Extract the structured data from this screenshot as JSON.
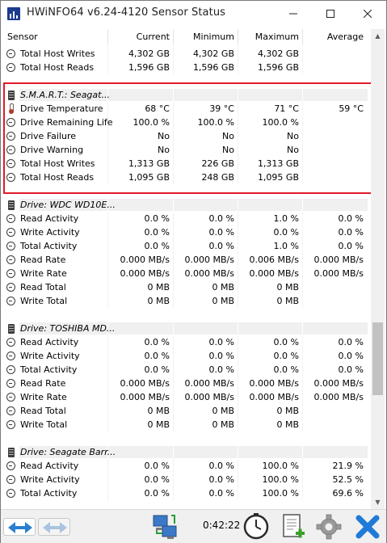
{
  "window": {
    "title": "HWiNFO64 v6.24-4120 Sensor Status",
    "highlight_color": "#e01a2a"
  },
  "columns": {
    "sensor": "Sensor",
    "current": "Current",
    "minimum": "Minimum",
    "maximum": "Maximum",
    "average": "Average"
  },
  "rows": [
    {
      "type": "sensor",
      "icon": "clock",
      "label": "Total Host Writes",
      "current": "4,302 GB",
      "minimum": "4,302 GB",
      "maximum": "4,302 GB",
      "average": ""
    },
    {
      "type": "sensor",
      "icon": "clock",
      "label": "Total Host Reads",
      "current": "1,596 GB",
      "minimum": "1,596 GB",
      "maximum": "1,596 GB",
      "average": ""
    },
    {
      "type": "spacer"
    },
    {
      "type": "group",
      "icon": "drive",
      "label": "S.M.A.R.T.: Seagat..."
    },
    {
      "type": "sensor",
      "icon": "thermometer",
      "label": "Drive Temperature",
      "current": "68 °C",
      "minimum": "39 °C",
      "maximum": "71 °C",
      "average": "59 °C"
    },
    {
      "type": "sensor",
      "icon": "clock",
      "label": "Drive Remaining Life",
      "current": "100.0 %",
      "minimum": "100.0 %",
      "maximum": "100.0 %",
      "average": ""
    },
    {
      "type": "sensor",
      "icon": "clock",
      "label": "Drive Failure",
      "current": "No",
      "minimum": "No",
      "maximum": "No",
      "average": ""
    },
    {
      "type": "sensor",
      "icon": "clock",
      "label": "Drive Warning",
      "current": "No",
      "minimum": "No",
      "maximum": "No",
      "average": ""
    },
    {
      "type": "sensor",
      "icon": "clock",
      "label": "Total Host Writes",
      "current": "1,313 GB",
      "minimum": "226 GB",
      "maximum": "1,313 GB",
      "average": ""
    },
    {
      "type": "sensor",
      "icon": "clock",
      "label": "Total Host Reads",
      "current": "1,095 GB",
      "minimum": "248 GB",
      "maximum": "1,095 GB",
      "average": ""
    },
    {
      "type": "spacer"
    },
    {
      "type": "group",
      "icon": "drive",
      "label": "Drive: WDC WD10E..."
    },
    {
      "type": "sensor",
      "icon": "clock",
      "label": "Read Activity",
      "current": "0.0 %",
      "minimum": "0.0 %",
      "maximum": "1.0 %",
      "average": "0.0 %"
    },
    {
      "type": "sensor",
      "icon": "clock",
      "label": "Write Activity",
      "current": "0.0 %",
      "minimum": "0.0 %",
      "maximum": "0.0 %",
      "average": "0.0 %"
    },
    {
      "type": "sensor",
      "icon": "clock",
      "label": "Total Activity",
      "current": "0.0 %",
      "minimum": "0.0 %",
      "maximum": "1.0 %",
      "average": "0.0 %"
    },
    {
      "type": "sensor",
      "icon": "clock",
      "label": "Read Rate",
      "current": "0.000 MB/s",
      "minimum": "0.000 MB/s",
      "maximum": "0.006 MB/s",
      "average": "0.000 MB/s"
    },
    {
      "type": "sensor",
      "icon": "clock",
      "label": "Write Rate",
      "current": "0.000 MB/s",
      "minimum": "0.000 MB/s",
      "maximum": "0.000 MB/s",
      "average": "0.000 MB/s"
    },
    {
      "type": "sensor",
      "icon": "clock",
      "label": "Read Total",
      "current": "0 MB",
      "minimum": "0 MB",
      "maximum": "0 MB",
      "average": ""
    },
    {
      "type": "sensor",
      "icon": "clock",
      "label": "Write Total",
      "current": "0 MB",
      "minimum": "0 MB",
      "maximum": "0 MB",
      "average": ""
    },
    {
      "type": "spacer"
    },
    {
      "type": "group",
      "icon": "drive",
      "label": "Drive: TOSHIBA MD..."
    },
    {
      "type": "sensor",
      "icon": "clock",
      "label": "Read Activity",
      "current": "0.0 %",
      "minimum": "0.0 %",
      "maximum": "0.0 %",
      "average": "0.0 %"
    },
    {
      "type": "sensor",
      "icon": "clock",
      "label": "Write Activity",
      "current": "0.0 %",
      "minimum": "0.0 %",
      "maximum": "0.0 %",
      "average": "0.0 %"
    },
    {
      "type": "sensor",
      "icon": "clock",
      "label": "Total Activity",
      "current": "0.0 %",
      "minimum": "0.0 %",
      "maximum": "0.0 %",
      "average": "0.0 %"
    },
    {
      "type": "sensor",
      "icon": "clock",
      "label": "Read Rate",
      "current": "0.000 MB/s",
      "minimum": "0.000 MB/s",
      "maximum": "0.000 MB/s",
      "average": "0.000 MB/s"
    },
    {
      "type": "sensor",
      "icon": "clock",
      "label": "Write Rate",
      "current": "0.000 MB/s",
      "minimum": "0.000 MB/s",
      "maximum": "0.000 MB/s",
      "average": "0.000 MB/s"
    },
    {
      "type": "sensor",
      "icon": "clock",
      "label": "Read Total",
      "current": "0 MB",
      "minimum": "0 MB",
      "maximum": "0 MB",
      "average": ""
    },
    {
      "type": "sensor",
      "icon": "clock",
      "label": "Write Total",
      "current": "0 MB",
      "minimum": "0 MB",
      "maximum": "0 MB",
      "average": ""
    },
    {
      "type": "spacer"
    },
    {
      "type": "group",
      "icon": "drive",
      "label": "Drive: Seagate Barr..."
    },
    {
      "type": "sensor",
      "icon": "clock",
      "label": "Read Activity",
      "current": "0.0 %",
      "minimum": "0.0 %",
      "maximum": "100.0 %",
      "average": "21.9 %"
    },
    {
      "type": "sensor",
      "icon": "clock",
      "label": "Write Activity",
      "current": "0.0 %",
      "minimum": "0.0 %",
      "maximum": "100.0 %",
      "average": "52.5 %"
    },
    {
      "type": "sensor",
      "icon": "clock",
      "label": "Total Activity",
      "current": "0.0 %",
      "minimum": "0.0 %",
      "maximum": "100.0 %",
      "average": "69.6 %"
    }
  ],
  "toolbar": {
    "elapsed_time": "0:42:22"
  }
}
